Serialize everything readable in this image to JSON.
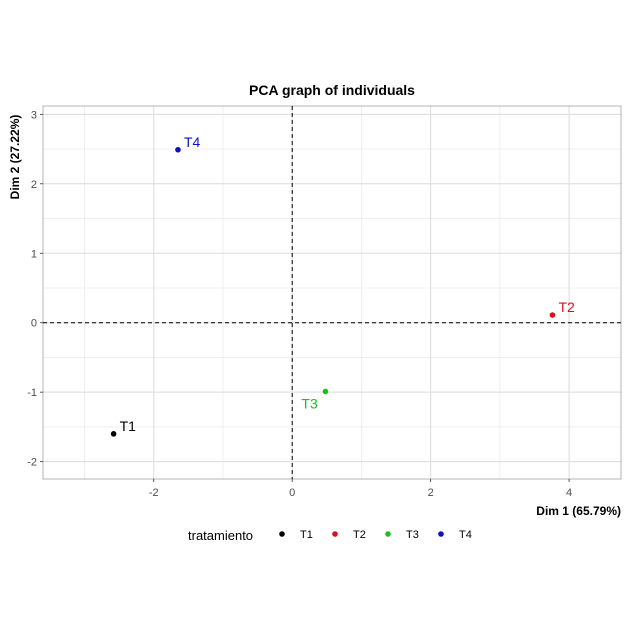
{
  "chart_data": {
    "type": "scatter",
    "title": "PCA graph of individuals",
    "xlabel": "Dim 1 (65.79%)",
    "ylabel": "Dim 2 (27.22%)",
    "xlim": [
      -3.6,
      4.75
    ],
    "ylim": [
      -2.25,
      3.12
    ],
    "x_ticks": [
      -2,
      0,
      2,
      4
    ],
    "y_ticks": [
      -2,
      -1,
      0,
      1,
      2,
      3
    ],
    "grid": true,
    "reference_lines": {
      "x": 0,
      "y": 0,
      "style": "dashed"
    },
    "legend": {
      "title": "tratamiento",
      "position": "bottom"
    },
    "points": [
      {
        "label": "T1",
        "x": -2.58,
        "y": -1.6,
        "color": "#000000"
      },
      {
        "label": "T2",
        "x": 3.76,
        "y": 0.11,
        "color": "#DF0E1B"
      },
      {
        "label": "T3",
        "x": 0.48,
        "y": -0.99,
        "color": "#1FBF1F"
      },
      {
        "label": "T4",
        "x": -1.65,
        "y": 2.49,
        "color": "#0C0FC4"
      }
    ]
  }
}
